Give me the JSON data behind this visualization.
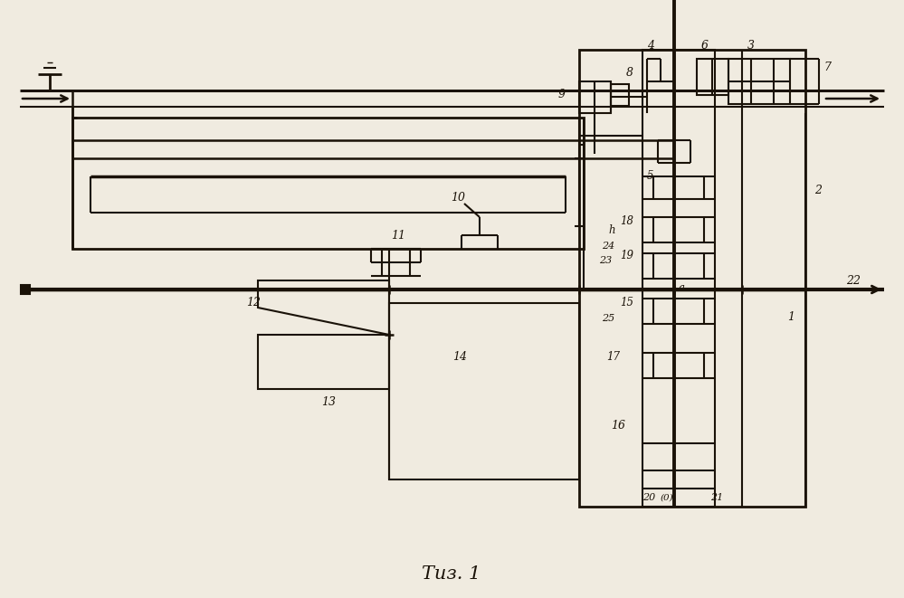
{
  "bg_color": "#f0ebe0",
  "lc": "#1a1208",
  "fig_label": "Τиз. 1"
}
